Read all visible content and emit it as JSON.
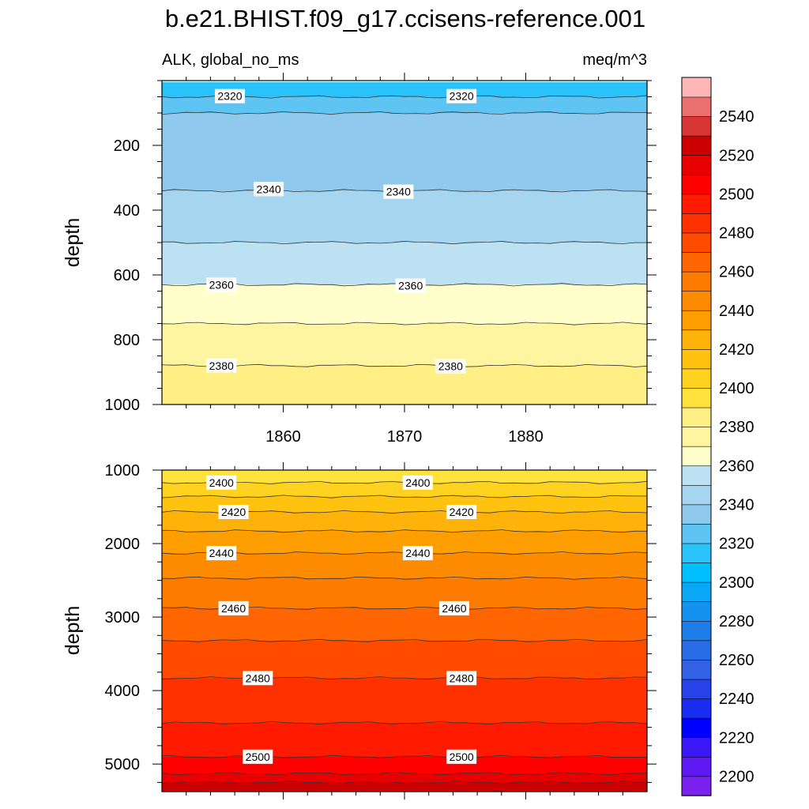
{
  "chart_data": {
    "type": "heatmap",
    "title": "b.e21.BHIST.f09_g17.ccisens-reference.001",
    "left_subtitle": "ALK, global_no_ms",
    "right_subtitle": "meq/m^3",
    "x_range": [
      1850,
      1890
    ],
    "x_ticks": [
      1860,
      1870,
      1880
    ],
    "x_tick_labels": [
      "1860",
      "1870",
      "1880"
    ],
    "colorbar": {
      "levels": [
        2190,
        2200,
        2210,
        2220,
        2230,
        2240,
        2250,
        2260,
        2270,
        2280,
        2290,
        2300,
        2310,
        2320,
        2330,
        2340,
        2350,
        2360,
        2370,
        2380,
        2390,
        2400,
        2410,
        2420,
        2430,
        2440,
        2450,
        2460,
        2470,
        2480,
        2490,
        2500,
        2510,
        2520,
        2530,
        2540,
        2550,
        2560
      ],
      "colors": [
        "#7a21f0",
        "#5e19f5",
        "#3a17f7",
        "#0000ff",
        "#1a2ef2",
        "#2642e8",
        "#3361e3",
        "#2a6ce6",
        "#1f7de9",
        "#1591f0",
        "#0aa7f5",
        "#00bfff",
        "#29c2fa",
        "#5dc4f4",
        "#8fcaee",
        "#a6d5f0",
        "#bbe1f3",
        "#ffffcc",
        "#fff5a0",
        "#ffef85",
        "#ffe23c",
        "#ffd21f",
        "#ffc30f",
        "#ffb30a",
        "#ff9e00",
        "#ff8c00",
        "#ff7b00",
        "#ff6500",
        "#ff4a00",
        "#ff3100",
        "#ff1a00",
        "#ff0000",
        "#e80000",
        "#cc0000",
        "#d93535",
        "#ec7070",
        "#ffb6b6"
      ],
      "tick_labels": [
        "2200",
        "2220",
        "2240",
        "2260",
        "2280",
        "2300",
        "2320",
        "2340",
        "2360",
        "2380",
        "2400",
        "2420",
        "2440",
        "2460",
        "2480",
        "2500",
        "2520",
        "2540"
      ]
    },
    "top_panel": {
      "ylabel": "depth",
      "ylim": [
        0,
        1000
      ],
      "y_ticks": [
        200,
        400,
        600,
        800,
        1000
      ],
      "y_tick_labels": [
        "200",
        "400",
        "600",
        "800",
        "1000"
      ],
      "depth_top": 5,
      "bands": [
        {
          "from": 5,
          "to": 50,
          "value": 2315
        },
        {
          "from": 50,
          "to": 100,
          "value": 2325
        },
        {
          "from": 100,
          "to": 340,
          "value": 2335
        },
        {
          "from": 340,
          "to": 500,
          "value": 2345
        },
        {
          "from": 500,
          "to": 630,
          "value": 2355
        },
        {
          "from": 630,
          "to": 750,
          "value": 2365
        },
        {
          "from": 750,
          "to": 880,
          "value": 2375
        },
        {
          "from": 880,
          "to": 1000,
          "value": 2385
        }
      ],
      "contour_lines": [
        50,
        100,
        340,
        500,
        630,
        750,
        880
      ],
      "contour_labels": [
        {
          "text": "2320",
          "year": 1855.6,
          "depth": 48
        },
        {
          "text": "2320",
          "year": 1874.7,
          "depth": 48
        },
        {
          "text": "2340",
          "year": 1858.8,
          "depth": 335
        },
        {
          "text": "2340",
          "year": 1869.5,
          "depth": 343
        },
        {
          "text": "2360",
          "year": 1854.9,
          "depth": 630
        },
        {
          "text": "2360",
          "year": 1870.5,
          "depth": 633
        },
        {
          "text": "2380",
          "year": 1854.9,
          "depth": 880
        },
        {
          "text": "2380",
          "year": 1873.8,
          "depth": 882
        }
      ]
    },
    "bottom_panel": {
      "ylabel": "depth",
      "ylim": [
        1000,
        5375
      ],
      "y_ticks": [
        1000,
        2000,
        3000,
        4000,
        5000
      ],
      "y_tick_labels": [
        "1000",
        "2000",
        "3000",
        "4000",
        "5000"
      ],
      "bands": [
        {
          "from": 1000,
          "to": 1170,
          "value": 2395
        },
        {
          "from": 1170,
          "to": 1360,
          "value": 2405
        },
        {
          "from": 1360,
          "to": 1570,
          "value": 2415
        },
        {
          "from": 1570,
          "to": 1830,
          "value": 2425
        },
        {
          "from": 1830,
          "to": 2130,
          "value": 2435
        },
        {
          "from": 2130,
          "to": 2470,
          "value": 2445
        },
        {
          "from": 2470,
          "to": 2880,
          "value": 2455
        },
        {
          "from": 2880,
          "to": 3320,
          "value": 2465
        },
        {
          "from": 3320,
          "to": 3830,
          "value": 2475
        },
        {
          "from": 3830,
          "to": 4440,
          "value": 2485
        },
        {
          "from": 4440,
          "to": 4900,
          "value": 2495
        },
        {
          "from": 4900,
          "to": 5130,
          "value": 2505
        },
        {
          "from": 5130,
          "to": 5250,
          "value": 2515
        },
        {
          "from": 5250,
          "to": 5375,
          "value": 2525
        }
      ],
      "contour_lines": [
        1170,
        1360,
        1570,
        1830,
        2130,
        2470,
        2880,
        3320,
        3830,
        4440,
        4900,
        5130,
        5250
      ],
      "contour_labels": [
        {
          "text": "2400",
          "year": 1854.9,
          "depth": 1170
        },
        {
          "text": "2400",
          "year": 1871.1,
          "depth": 1170
        },
        {
          "text": "2420",
          "year": 1855.9,
          "depth": 1570
        },
        {
          "text": "2420",
          "year": 1874.7,
          "depth": 1570
        },
        {
          "text": "2440",
          "year": 1854.9,
          "depth": 2130
        },
        {
          "text": "2440",
          "year": 1871.1,
          "depth": 2130
        },
        {
          "text": "2460",
          "year": 1855.9,
          "depth": 2880
        },
        {
          "text": "2460",
          "year": 1874.1,
          "depth": 2880
        },
        {
          "text": "2480",
          "year": 1857.9,
          "depth": 3830
        },
        {
          "text": "2480",
          "year": 1874.7,
          "depth": 3830
        },
        {
          "text": "2500",
          "year": 1857.9,
          "depth": 4900
        },
        {
          "text": "2500",
          "year": 1874.7,
          "depth": 4900
        }
      ]
    }
  }
}
